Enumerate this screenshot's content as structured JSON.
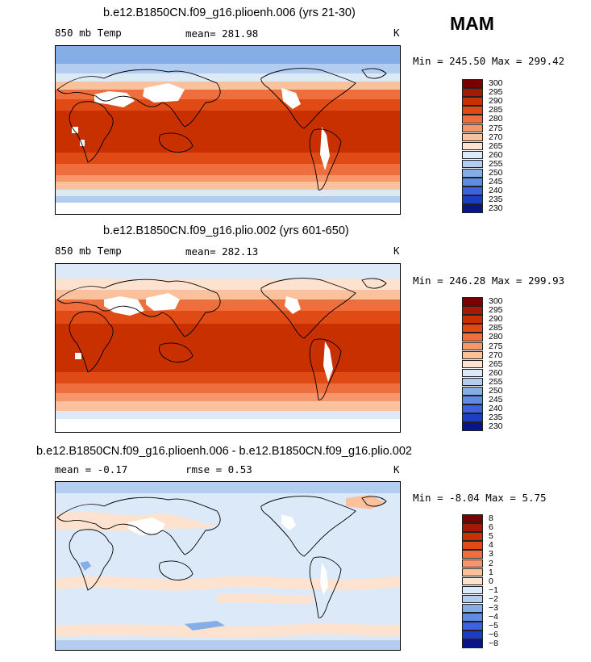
{
  "season": "MAM",
  "unit_label": "K",
  "panels": [
    {
      "title": "b.e12.B1850CN.f09_g16.plioenh.006 (yrs 21-30)",
      "variable": "850 mb Temp",
      "stat": "mean= 281.98",
      "minmax": "Min = 245.50 Max = 299.42",
      "colorbar": [
        "300",
        "295",
        "290",
        "285",
        "280",
        "275",
        "270",
        "265",
        "260",
        "255",
        "250",
        "245",
        "240",
        "235",
        "230"
      ]
    },
    {
      "title": "b.e12.B1850CN.f09_g16.plio.002 (yrs 601-650)",
      "variable": "850 mb Temp",
      "stat": "mean= 282.13",
      "minmax": "Min = 246.28 Max = 299.93",
      "colorbar": [
        "300",
        "295",
        "290",
        "285",
        "280",
        "275",
        "270",
        "265",
        "260",
        "255",
        "250",
        "245",
        "240",
        "235",
        "230"
      ]
    },
    {
      "title": "b.e12.B1850CN.f09_g16.plioenh.006 - b.e12.B1850CN.f09_g16.plio.002",
      "stat": "mean = -0.17",
      "stat2": "rmse = 0.53",
      "minmax": "Min = -8.04 Max = 5.75",
      "colorbar": [
        "8",
        "6",
        "5",
        "4",
        "3",
        "2",
        "1",
        "0",
        "−1",
        "−2",
        "−3",
        "−4",
        "−5",
        "−6",
        "−8"
      ]
    }
  ],
  "colors": {
    "abs_scale": [
      "#7a0000",
      "#a51900",
      "#c83000",
      "#e04a14",
      "#ee6e3e",
      "#f7966b",
      "#fbc09c",
      "#fde3cf",
      "#dce9f8",
      "#b3cdf0",
      "#86aee6",
      "#5f8be3",
      "#3a63dd",
      "#1c3ec0",
      "#08148a"
    ],
    "diff_scale": [
      "#7a0000",
      "#a51900",
      "#c83000",
      "#e04a14",
      "#ee6e3e",
      "#f7966b",
      "#fbc09c",
      "#fde3cf",
      "#dce9f8",
      "#b3cdf0",
      "#86aee6",
      "#5f8be3",
      "#3a63dd",
      "#1c3ec0",
      "#08148a"
    ],
    "land_outline": "#000000",
    "missing": "#ffffff"
  }
}
